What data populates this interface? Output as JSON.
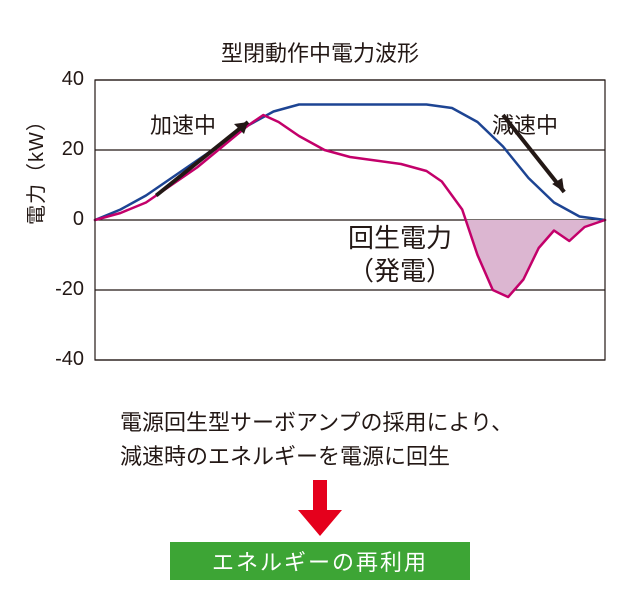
{
  "chart": {
    "type": "line",
    "title": "型閉動作中電力波形",
    "ylabel": "電力（kW）",
    "ylim": [
      -40,
      40
    ],
    "yticks": [
      -40,
      -20,
      0,
      20,
      40
    ],
    "gridlines_at": [
      -40,
      -20,
      0,
      20,
      40
    ],
    "background_color": "#ffffff",
    "axis_color": "#231815",
    "grid_color": "#231815",
    "axis_width": 1.2,
    "title_fontsize": 22,
    "label_fontsize": 20,
    "annotations": {
      "accel": {
        "text": "加速中",
        "fontsize": 22
      },
      "decel": {
        "text": "減速中",
        "fontsize": 22
      },
      "regen_line1": "回生電力",
      "regen_line2": "（発電）",
      "regen_fontsize": 26
    },
    "series": {
      "blue": {
        "color": "#1d4493",
        "width": 2.5,
        "x": [
          0,
          0.05,
          0.1,
          0.15,
          0.2,
          0.25,
          0.3,
          0.35,
          0.4,
          0.45,
          0.5,
          0.55,
          0.6,
          0.65,
          0.7,
          0.75,
          0.8,
          0.85,
          0.9,
          0.95,
          1.0
        ],
        "y": [
          0,
          3,
          7,
          12,
          17,
          22,
          27,
          31,
          33,
          33,
          33,
          33,
          33,
          33,
          32,
          28,
          21,
          12,
          5,
          1,
          0
        ]
      },
      "magenta": {
        "color": "#c3006a",
        "width": 2.5,
        "fill_below_zero": "#dcb6d1",
        "fill_opacity": 1,
        "x": [
          0,
          0.05,
          0.1,
          0.15,
          0.2,
          0.25,
          0.3,
          0.33,
          0.36,
          0.4,
          0.45,
          0.5,
          0.55,
          0.6,
          0.65,
          0.68,
          0.72,
          0.75,
          0.78,
          0.81,
          0.84,
          0.87,
          0.9,
          0.93,
          0.96,
          1.0
        ],
        "y": [
          0,
          2,
          5,
          10,
          15,
          21,
          27,
          30,
          28,
          24,
          20,
          18,
          17,
          16,
          14,
          11,
          3,
          -10,
          -20,
          -22,
          -17,
          -8,
          -3,
          -6,
          -2,
          0
        ]
      }
    }
  },
  "caption": {
    "line1": "電源回生型サーボアンプの採用により、",
    "line2": "減速時のエネルギーを電源に回生"
  },
  "arrow_color": "#e5001c",
  "badge": {
    "text": "エネルギーの再利用",
    "bg": "#3da535",
    "fg": "#ffffff"
  }
}
